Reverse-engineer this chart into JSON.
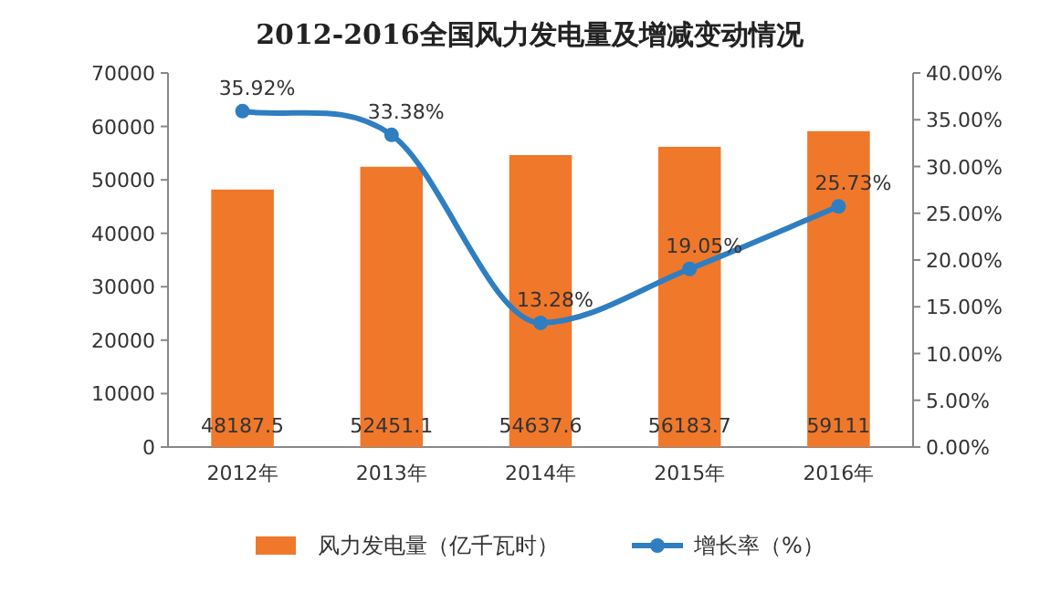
{
  "chart_data": {
    "type": "bar",
    "title": "2012-2016全国风力发电量及增减变动情况",
    "categories": [
      "2012年",
      "2013年",
      "2014年",
      "2015年",
      "2016年"
    ],
    "series": [
      {
        "name": "风力发电量（亿千瓦时）",
        "color": "#f0782b",
        "values": [
          48187.5,
          52451.1,
          54637.6,
          56183.7,
          59111
        ],
        "value_labels": [
          "48187.5",
          "52451.1",
          "54637.6",
          "56183.7",
          "59111"
        ]
      },
      {
        "name": "增长率（%）",
        "type": "line",
        "axis": "y2",
        "color": "#2f7ec1",
        "marker": "circle",
        "values": [
          35.92,
          33.38,
          13.28,
          19.05,
          25.73
        ],
        "value_labels": [
          "35.92%",
          "33.38%",
          "13.28%",
          "19.05%",
          "25.73%"
        ]
      }
    ],
    "ylim": [
      0,
      70000
    ],
    "yticks": [
      0,
      10000,
      20000,
      30000,
      40000,
      50000,
      60000,
      70000
    ],
    "y2lim": [
      0,
      40
    ],
    "y2ticks": [
      {
        "value": 0,
        "label": "0.00%"
      },
      {
        "value": 5,
        "label": "5.00%"
      },
      {
        "value": 10,
        "label": "10.00%"
      },
      {
        "value": 15,
        "label": "15.00%"
      },
      {
        "value": 20,
        "label": "20.00%"
      },
      {
        "value": 25,
        "label": "25.00%"
      },
      {
        "value": 30,
        "label": "30.00%"
      },
      {
        "value": 35,
        "label": "35.00%"
      },
      {
        "value": 40,
        "label": "40.00%"
      }
    ],
    "legend": "bottom",
    "grid": false
  }
}
